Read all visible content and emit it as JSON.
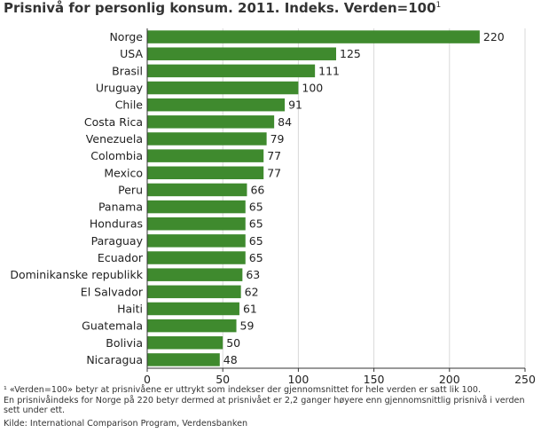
{
  "title_text": "Prisnivå for personlig konsum. 2011. Indeks. Verden=100",
  "title_footnote_mark": "1",
  "colors": {
    "bar": "#3f8a2e",
    "axis": "#333333",
    "grid": "#d9d9d9"
  },
  "footnote_line1": "¹ «Verden=100» betyr at prisnivåene er uttrykt som indekser der gjennomsnittet for hele verden er satt lik 100.",
  "footnote_line2": "En prisnivåindeks for Norge på 220 betyr dermed at prisnivået er 2,2 ganger høyere enn gjennomsnittlig prisnivå i verden sett under ett.",
  "source": "Kilde: International Comparison Program, Verdensbanken",
  "chart_data": {
    "type": "bar",
    "orientation": "horizontal",
    "title": "Prisnivå for personlig konsum. 2011. Indeks. Verden=100",
    "xlabel": "",
    "ylabel": "",
    "xlim": [
      0,
      250
    ],
    "xticks": [
      0,
      50,
      100,
      150,
      200,
      250
    ],
    "grid": true,
    "categories": [
      "Norge",
      "USA",
      "Brasil",
      "Uruguay",
      "Chile",
      "Costa Rica",
      "Venezuela",
      "Colombia",
      "Mexico",
      "Peru",
      "Panama",
      "Honduras",
      "Paraguay",
      "Ecuador",
      "Dominikanske republikk",
      "El Salvador",
      "Haiti",
      "Guatemala",
      "Bolivia",
      "Nicaragua"
    ],
    "values": [
      220,
      125,
      111,
      100,
      91,
      84,
      79,
      77,
      77,
      66,
      65,
      65,
      65,
      65,
      63,
      62,
      61,
      59,
      50,
      48
    ],
    "data_labels": [
      "220",
      "125",
      "111",
      "100",
      "91",
      "84",
      "79",
      "77",
      "77",
      "66",
      "65",
      "65",
      "65",
      "65",
      "63",
      "62",
      "61",
      "59",
      "50",
      "48"
    ]
  }
}
